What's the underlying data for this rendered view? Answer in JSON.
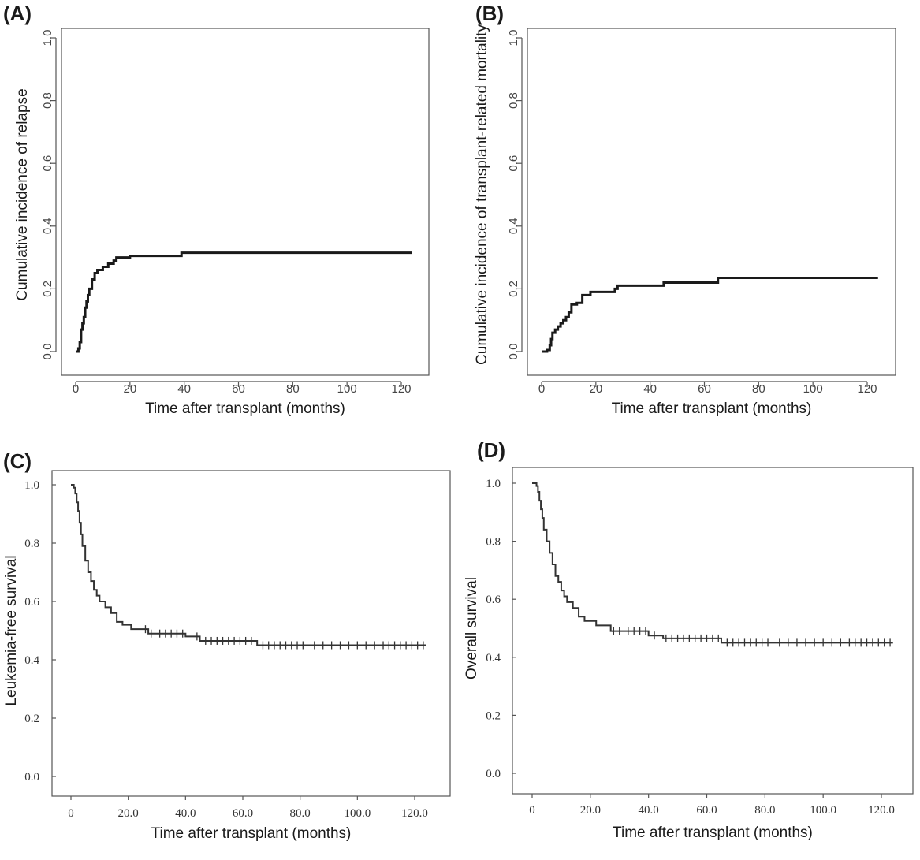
{
  "chart_data": [
    {
      "panel": "(A)",
      "type": "line",
      "step": true,
      "xlabel": "Time after transplant (months)",
      "ylabel": "Cumulative incidence of relapse",
      "xlim": [
        0,
        125
      ],
      "ylim": [
        0,
        1
      ],
      "x_ticks": [
        "0",
        "20",
        "40",
        "60",
        "80",
        "100",
        "120"
      ],
      "y_ticks": [
        "0.0",
        "0.2",
        "0.4",
        "0.6",
        "0.8",
        "1.0"
      ],
      "grid": false,
      "series": [
        {
          "x": [
            0,
            1,
            1.5,
            2,
            2.5,
            3,
            3.5,
            4,
            4.5,
            5,
            6,
            7,
            8,
            10,
            12,
            14,
            15,
            20,
            39,
            124
          ],
          "y": [
            0,
            0.01,
            0.03,
            0.07,
            0.09,
            0.11,
            0.14,
            0.16,
            0.18,
            0.2,
            0.23,
            0.25,
            0.26,
            0.27,
            0.28,
            0.29,
            0.3,
            0.305,
            0.315,
            0.315
          ]
        }
      ]
    },
    {
      "panel": "(B)",
      "type": "line",
      "step": true,
      "xlabel": "Time after transplant (months)",
      "ylabel": "Cumulative incidence of transplant-related mortality",
      "xlim": [
        0,
        125
      ],
      "ylim": [
        0,
        1
      ],
      "x_ticks": [
        "0",
        "20",
        "40",
        "60",
        "80",
        "100",
        "120"
      ],
      "y_ticks": [
        "0.0",
        "0.2",
        "0.4",
        "0.6",
        "0.8",
        "1.0"
      ],
      "grid": false,
      "series": [
        {
          "x": [
            0,
            2,
            3,
            3.5,
            4,
            5,
            6,
            7,
            8,
            9,
            10,
            11,
            13,
            15,
            18,
            27,
            28,
            45,
            65,
            124
          ],
          "y": [
            0,
            0.005,
            0.02,
            0.04,
            0.06,
            0.07,
            0.08,
            0.09,
            0.1,
            0.11,
            0.125,
            0.15,
            0.155,
            0.18,
            0.19,
            0.2,
            0.21,
            0.22,
            0.235,
            0.235
          ]
        }
      ]
    },
    {
      "panel": "(C)",
      "type": "line",
      "step": true,
      "xlabel": "Time after transplant (months)",
      "ylabel": "Leukemia-free survival",
      "xlim": [
        0,
        125
      ],
      "ylim": [
        0,
        1
      ],
      "x_ticks": [
        "0",
        "20.0",
        "40.0",
        "60.0",
        "80.0",
        "100.0",
        "120.0"
      ],
      "y_ticks": [
        "0.0",
        "0.2",
        "0.4",
        "0.6",
        "0.8",
        "1.0"
      ],
      "grid": false,
      "series": [
        {
          "x": [
            0,
            1,
            1.5,
            2,
            2.5,
            3,
            3.5,
            4,
            5,
            6,
            7,
            8,
            9,
            10,
            12,
            14,
            16,
            18,
            21,
            27,
            40,
            45,
            65,
            124
          ],
          "y": [
            1.0,
            0.99,
            0.97,
            0.94,
            0.91,
            0.87,
            0.83,
            0.79,
            0.74,
            0.7,
            0.67,
            0.64,
            0.62,
            0.6,
            0.58,
            0.56,
            0.53,
            0.52,
            0.505,
            0.49,
            0.48,
            0.465,
            0.45,
            0.45
          ]
        }
      ],
      "censor_x": [
        26,
        28,
        31,
        33,
        35,
        37,
        39,
        44,
        47,
        49,
        51,
        53,
        55,
        57,
        59,
        61,
        63,
        67,
        69,
        71,
        73,
        75,
        77,
        79,
        81,
        85,
        88,
        91,
        94,
        97,
        100,
        103,
        106,
        109,
        111,
        113,
        115,
        117,
        119,
        121,
        123
      ]
    },
    {
      "panel": "(D)",
      "type": "line",
      "step": true,
      "xlabel": "Time after transplant (months)",
      "ylabel": "Overall survival",
      "xlim": [
        0,
        125
      ],
      "ylim": [
        0,
        1
      ],
      "x_ticks": [
        "0",
        "20.0",
        "40.0",
        "60.0",
        "80.0",
        "100.0",
        "120.0"
      ],
      "y_ticks": [
        "0.0",
        "0.2",
        "0.4",
        "0.6",
        "0.8",
        "1.0"
      ],
      "grid": false,
      "series": [
        {
          "x": [
            0,
            1.5,
            2,
            2.5,
            3,
            3.5,
            4,
            5,
            6,
            7,
            8,
            9,
            10,
            11,
            12,
            14,
            16,
            18,
            22,
            27,
            40,
            45,
            65,
            124
          ],
          "y": [
            1.0,
            0.99,
            0.97,
            0.94,
            0.91,
            0.88,
            0.84,
            0.8,
            0.76,
            0.72,
            0.68,
            0.66,
            0.63,
            0.61,
            0.59,
            0.57,
            0.54,
            0.525,
            0.51,
            0.49,
            0.475,
            0.465,
            0.45,
            0.45
          ]
        }
      ],
      "censor_x": [
        28,
        30,
        33,
        35,
        37,
        39,
        42,
        46,
        48,
        50,
        52,
        54,
        56,
        58,
        60,
        62,
        64,
        67,
        69,
        71,
        73,
        75,
        77,
        79,
        81,
        85,
        88,
        91,
        94,
        97,
        100,
        103,
        106,
        109,
        111,
        113,
        115,
        117,
        119,
        121,
        123
      ]
    }
  ],
  "colors": {
    "curve": "#1a1a1a",
    "frame": "#555555",
    "background": "#ffffff"
  }
}
